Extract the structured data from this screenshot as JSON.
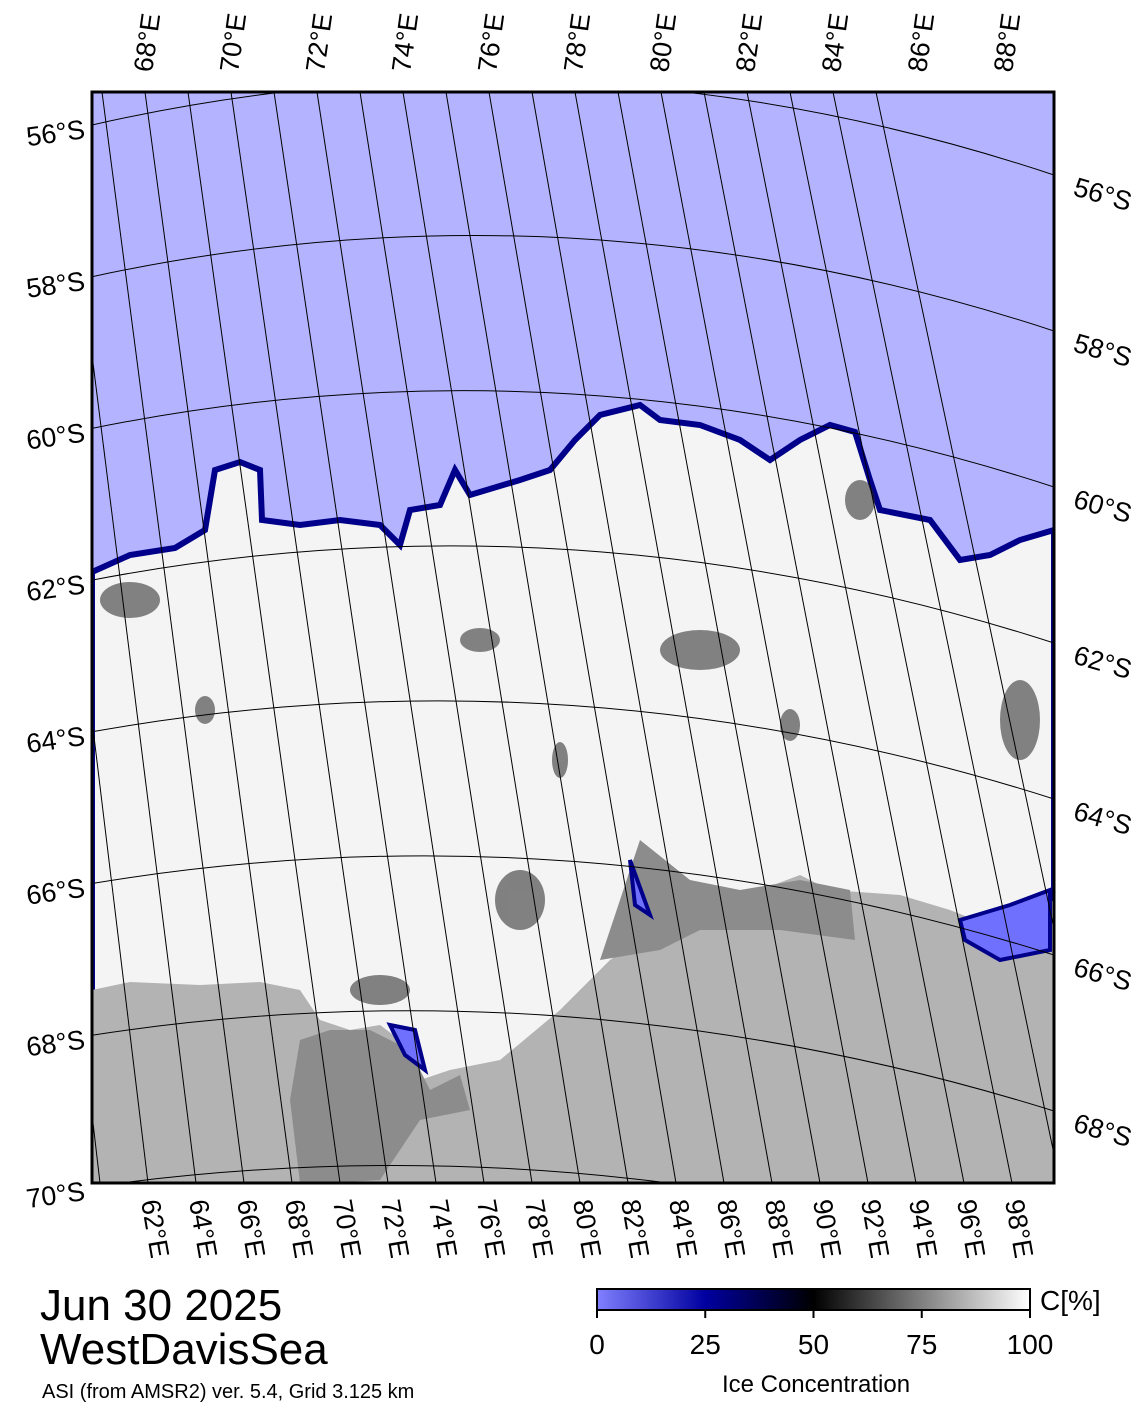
{
  "map": {
    "lon_labels_top": [
      "68°E",
      "70°E",
      "72°E",
      "74°E",
      "76°E",
      "78°E",
      "80°E",
      "82°E",
      "84°E",
      "86°E",
      "88°E"
    ],
    "lon_labels_bottom": [
      "62°E",
      "64°E",
      "66°E",
      "68°E",
      "70°E",
      "72°E",
      "74°E",
      "76°E",
      "78°E",
      "80°E",
      "82°E",
      "84°E",
      "86°E",
      "88°E",
      "90°E",
      "92°E",
      "94°E",
      "96°E",
      "98°E"
    ],
    "lat_labels_left": [
      "56°S",
      "58°S",
      "60°S",
      "62°S",
      "64°S",
      "66°S",
      "68°S",
      "70°S"
    ],
    "lat_labels_right": [
      "56°S",
      "58°S",
      "60°S",
      "62°S",
      "64°S",
      "66°S",
      "68°S"
    ]
  },
  "footer": {
    "date": "Jun 30 2025",
    "region": "WestDavisSea",
    "caption": "ASI (from AMSR2) ver. 5.4,  Grid 3.125 km"
  },
  "colorbar": {
    "unit": "C[%]",
    "title": "Ice Concentration",
    "range": [
      0,
      100
    ],
    "ticks": [
      0,
      25,
      50,
      75,
      100
    ]
  }
}
